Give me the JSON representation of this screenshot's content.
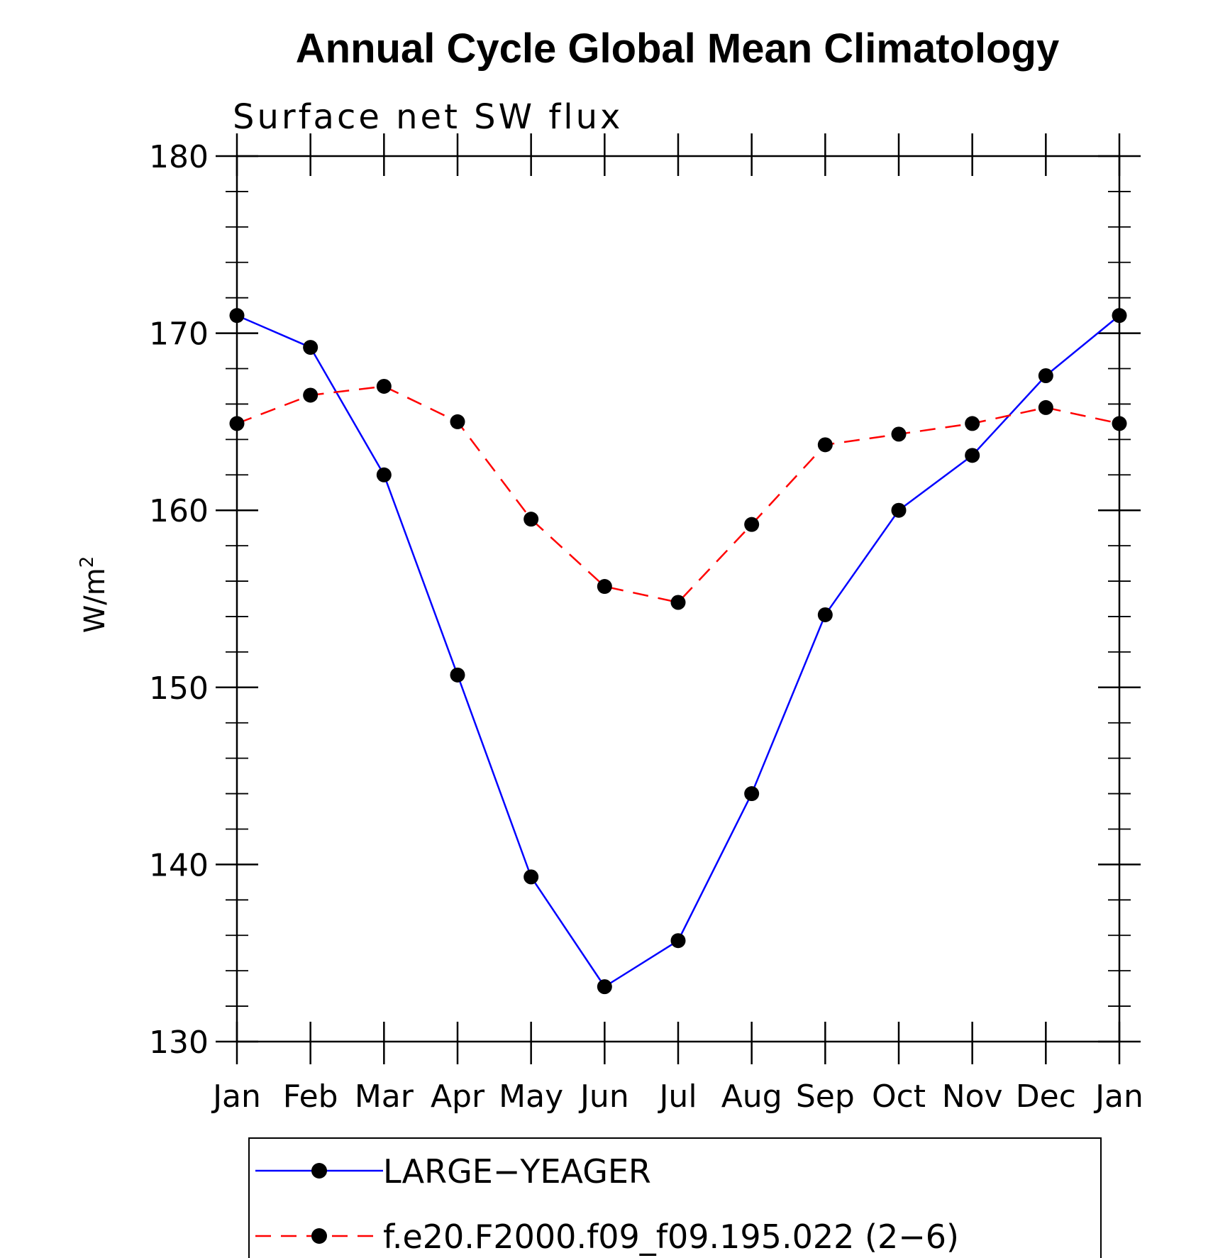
{
  "chart_data": {
    "type": "line",
    "title": "Annual Cycle Global Mean Climatology",
    "subtitle": "Surface net SW flux",
    "ylabel": "W/m",
    "ylabel_superscript": "2",
    "xlabel": "",
    "categories": [
      "Jan",
      "Feb",
      "Mar",
      "Apr",
      "May",
      "Jun",
      "Jul",
      "Aug",
      "Sep",
      "Oct",
      "Nov",
      "Dec",
      "Jan"
    ],
    "ylim": [
      130,
      180
    ],
    "yticks": [
      130,
      140,
      150,
      160,
      170,
      180
    ],
    "grid": false,
    "legend_placement": "bottom",
    "series": [
      {
        "name": "LARGE−YEAGER",
        "color": "#0000ff",
        "line_style": "solid",
        "marker": "filled-circle",
        "values": [
          171.0,
          169.2,
          162.0,
          150.7,
          139.3,
          133.1,
          135.7,
          144.0,
          154.1,
          160.0,
          163.1,
          167.6,
          171.0
        ]
      },
      {
        "name": "f.e20.F2000.f09_f09.195.022 (2−6)",
        "color": "#ff0000",
        "line_style": "dashed",
        "marker": "filled-circle",
        "values": [
          164.9,
          166.5,
          167.0,
          165.0,
          159.5,
          155.7,
          154.8,
          159.2,
          163.7,
          164.3,
          164.9,
          165.8,
          164.9
        ]
      }
    ]
  }
}
